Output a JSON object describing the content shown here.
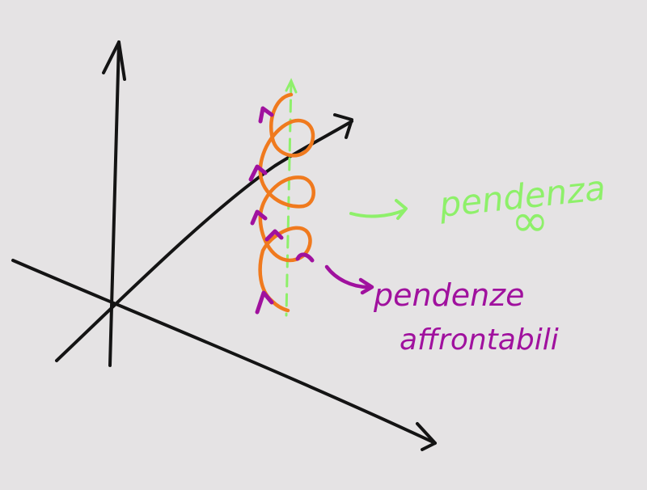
{
  "colors": {
    "background": "#e5e3e4",
    "axes": "#141414",
    "helix": "#f07a1e",
    "dashed_axis": "#8ef06a",
    "infinite_label": "#8ef06a",
    "affordable_label": "#a0119e"
  },
  "labels": {
    "infinite_slope_word": "pendenza",
    "infinite_symbol": "∞",
    "affordable_line1": "pendenze",
    "affordable_line2": "affrontabili"
  }
}
